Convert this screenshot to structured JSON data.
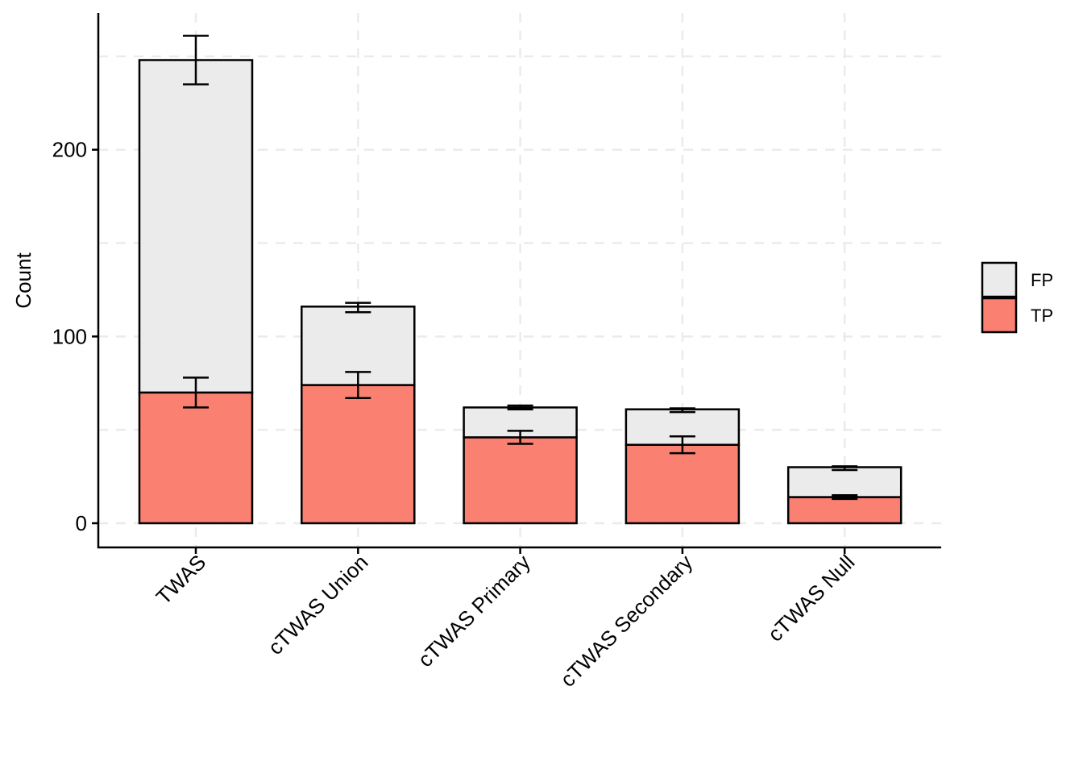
{
  "chart_data": {
    "type": "bar",
    "stacked": true,
    "title": "",
    "xlabel": "",
    "ylabel": "Count",
    "ylim": [
      -13,
      273
    ],
    "yticks": [
      0,
      100,
      200
    ],
    "grid": true,
    "legend_position": "right",
    "categories": [
      "TWAS",
      "cTWAS Union",
      "cTWAS Primary",
      "cTWAS Secondary",
      "cTWAS Null"
    ],
    "series": [
      {
        "name": "TP",
        "color": "#FA8072",
        "values": [
          70,
          74,
          46,
          42,
          14
        ],
        "error_low": [
          62,
          67,
          42.5,
          37.5,
          13
        ],
        "error_high": [
          78,
          81,
          49.5,
          46.5,
          15
        ]
      },
      {
        "name": "FP",
        "color": "#EBEBEB",
        "values": [
          178,
          42,
          16,
          19,
          16
        ],
        "error_low": [
          235,
          113,
          61,
          59.5,
          28.5
        ],
        "error_high": [
          261,
          118,
          63,
          61.5,
          30.5
        ]
      }
    ],
    "legend": [
      {
        "label": "FP",
        "color": "#EBEBEB"
      },
      {
        "label": "TP",
        "color": "#FA8072"
      }
    ]
  }
}
